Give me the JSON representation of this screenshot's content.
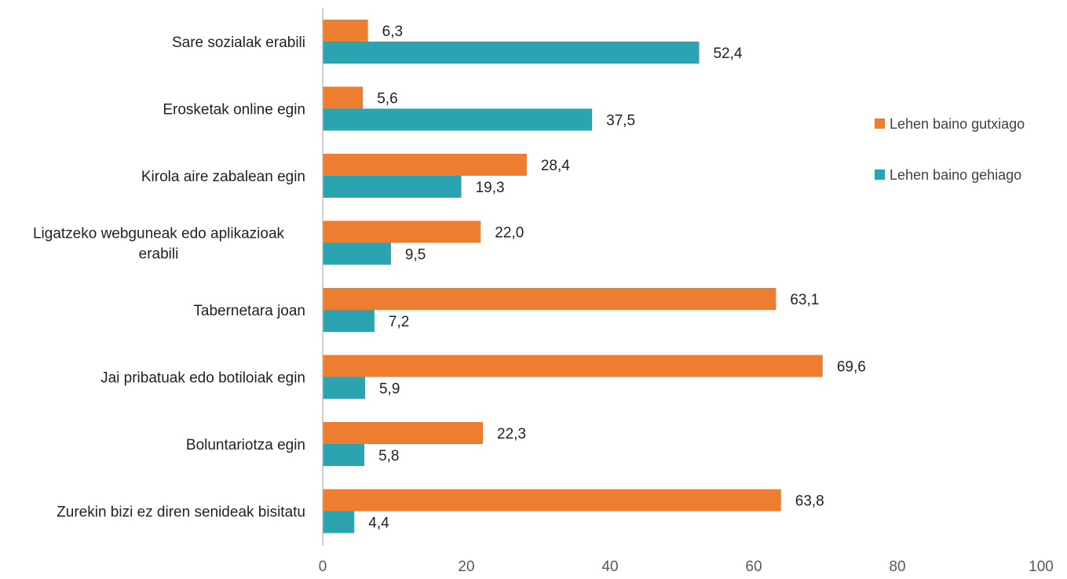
{
  "chart_data": {
    "type": "bar",
    "orientation": "horizontal",
    "categories": [
      [
        "Sare sozialak erabili"
      ],
      [
        "Erosketak online egin"
      ],
      [
        "Kirola aire zabalean egin"
      ],
      [
        "Ligatzeko webguneak edo aplikazioak",
        "erabili"
      ],
      [
        "Tabernetara joan"
      ],
      [
        "Jai pribatuak edo botiloiak egin"
      ],
      [
        "Boluntariotza egin"
      ],
      [
        "Zurekin bizi ez diren senideak bisitatu"
      ]
    ],
    "series": [
      {
        "name": "Lehen baino gutxiago",
        "color": "#ED7D31",
        "values": [
          6.3,
          5.6,
          28.4,
          22.0,
          63.1,
          69.6,
          22.3,
          63.8
        ],
        "labels": [
          "6,3",
          "5,6",
          "28,4",
          "22,0",
          "63,1",
          "69,6",
          "22,3",
          "63,8"
        ]
      },
      {
        "name": "Lehen baino gehiago",
        "color": "#2CA3B1",
        "values": [
          52.4,
          37.5,
          19.3,
          9.5,
          7.2,
          5.9,
          5.8,
          4.4
        ],
        "labels": [
          "52,4",
          "37,5",
          "19,3",
          "9,5",
          "7,2",
          "5,9",
          "5,8",
          "4,4"
        ]
      }
    ],
    "xlim": [
      0,
      100
    ],
    "xticks": [
      0,
      20,
      40,
      60,
      80,
      100
    ],
    "grid": false,
    "legend_position": "right",
    "title": "",
    "xlabel": "",
    "ylabel": ""
  }
}
